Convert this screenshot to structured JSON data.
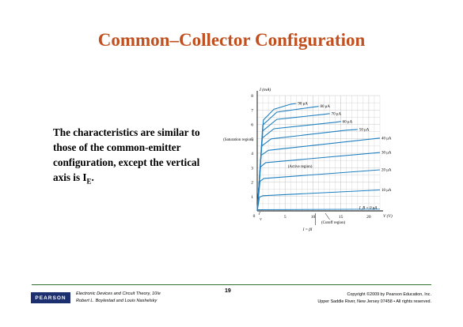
{
  "slide": {
    "title": "Common–Collector Configuration",
    "body_text": "The characteristics are similar to those of the common-emitter configuration, except the vertical axis is I",
    "body_subscript": "E",
    "body_end": "."
  },
  "footer": {
    "logo": "PEARSON",
    "book_title": "Electronic Devices and Circuit Theory, 10/e",
    "authors": "Robert L. Boylestad and Louis Nashelsky",
    "page_number": "19",
    "copyright": "Copyright ©2009 by Pearson Education, Inc.",
    "address": "Upper Saddle River, New Jersey 07458 • All rights reserved."
  },
  "chart_data": {
    "type": "line",
    "ylabel": "I_C (mA)",
    "xlabel": "V_CE (V)",
    "x_ticks": [
      5,
      10,
      15,
      20
    ],
    "y_ticks": [
      1,
      2,
      3,
      4,
      5,
      6,
      7,
      8
    ],
    "xlim": [
      0,
      22
    ],
    "ylim": [
      0,
      8
    ],
    "grid": true,
    "annotations": {
      "saturation": "(Saturation region)",
      "active": "(Active region)",
      "cutoff": "(Cutoff region)",
      "origin": "0",
      "vce_sat": "V_CEsat",
      "iceo": "I_CEO = βI_CBO"
    },
    "series": [
      {
        "label": "I_B = 0 μA",
        "values": [
          [
            0,
            0.08
          ],
          [
            22,
            0.12
          ]
        ]
      },
      {
        "label": "10 μA",
        "values": [
          [
            0,
            0
          ],
          [
            0.4,
            0.95
          ],
          [
            1,
            1.05
          ],
          [
            22,
            1.45
          ]
        ]
      },
      {
        "label": "20 μA",
        "values": [
          [
            0,
            0
          ],
          [
            0.5,
            2.05
          ],
          [
            1.2,
            2.25
          ],
          [
            22,
            2.85
          ]
        ]
      },
      {
        "label": "30 μA",
        "values": [
          [
            0,
            0
          ],
          [
            0.6,
            3.05
          ],
          [
            1.5,
            3.35
          ],
          [
            22,
            4.05
          ]
        ]
      },
      {
        "label": "40 μA",
        "values": [
          [
            0,
            0
          ],
          [
            0.7,
            3.85
          ],
          [
            2,
            4.2
          ],
          [
            22,
            5.05
          ]
        ]
      },
      {
        "label": "50 μA",
        "values": [
          [
            0,
            0
          ],
          [
            0.8,
            4.5
          ],
          [
            2.5,
            5.0
          ],
          [
            16,
            5.6
          ],
          [
            18,
            5.65
          ]
        ]
      },
      {
        "label": "60 μA",
        "values": [
          [
            0,
            0
          ],
          [
            0.9,
            5.05
          ],
          [
            3,
            5.7
          ],
          [
            14,
            6.15
          ],
          [
            15,
            6.2
          ]
        ]
      },
      {
        "label": "70 μA",
        "values": [
          [
            0,
            0
          ],
          [
            1,
            5.55
          ],
          [
            3.5,
            6.35
          ],
          [
            12,
            6.7
          ],
          [
            13,
            6.75
          ]
        ]
      },
      {
        "label": "80 μA",
        "values": [
          [
            0,
            0
          ],
          [
            1,
            5.95
          ],
          [
            3.5,
            6.85
          ],
          [
            10,
            7.2
          ],
          [
            11,
            7.25
          ]
        ]
      },
      {
        "label": "90 μA",
        "values": [
          [
            0,
            0
          ],
          [
            1.1,
            6.3
          ],
          [
            3,
            7.05
          ],
          [
            6,
            7.4
          ],
          [
            7,
            7.45
          ]
        ]
      }
    ],
    "colors": {
      "curve": "#1f7fbf",
      "grid": "#c8c8c8",
      "axis": "#000000"
    }
  }
}
